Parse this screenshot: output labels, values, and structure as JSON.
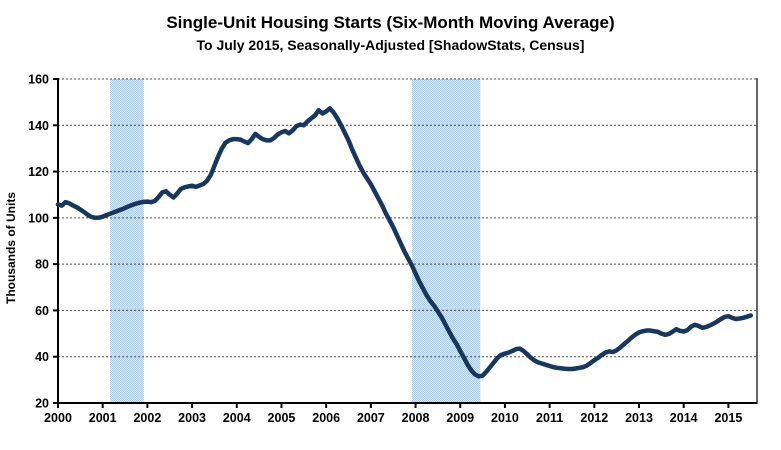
{
  "header": {
    "title": "Single-Unit Housing Starts (Six-Month Moving Average)",
    "subtitle": "To July 2015, Seasonally-Adjusted [ShadowStats, Census]"
  },
  "chart_data": {
    "type": "line",
    "title": "Single-Unit Housing Starts (Six-Month Moving Average)",
    "subtitle": "To July 2015, Seasonally-Adjusted [ShadowStats, Census]",
    "ylabel": "Thousands of Units",
    "xlabel": "",
    "grid": "horizontal-dotted",
    "legend": "none",
    "ylim": [
      20,
      160
    ],
    "xlim": [
      2000,
      2015.64
    ],
    "y_ticks": [
      20,
      40,
      60,
      80,
      100,
      120,
      140,
      160
    ],
    "x_ticks": [
      2000,
      2001,
      2002,
      2003,
      2004,
      2005,
      2006,
      2007,
      2008,
      2009,
      2010,
      2011,
      2012,
      2013,
      2014,
      2015
    ],
    "line_color": "#17375E",
    "line_width": 4.5,
    "band_color": "#adc9e8",
    "band_color_alt": "#dce8f6",
    "recession_bands": [
      {
        "from": 2001.17,
        "to": 2001.92
      },
      {
        "from": 2007.92,
        "to": 2009.45
      }
    ],
    "series": [
      {
        "name": "Single-unit housing starts, 6-month moving average (thousands of units)",
        "start_year": 2000,
        "start_month": 1,
        "frequency": "monthly",
        "values": [
          105.8,
          105.3,
          106.8,
          106.3,
          105.4,
          104.6,
          103.6,
          102.5,
          101.3,
          100.4,
          100.0,
          100.1,
          100.5,
          101.2,
          101.8,
          102.4,
          103.0,
          103.6,
          104.3,
          105.0,
          105.6,
          106.2,
          106.6,
          106.9,
          107.0,
          106.8,
          107.3,
          109.0,
          111.0,
          111.5,
          110.0,
          108.8,
          110.5,
          112.5,
          113.2,
          113.6,
          113.9,
          113.4,
          114.0,
          114.6,
          116.0,
          118.5,
          122.5,
          126.5,
          130.0,
          132.5,
          133.5,
          134.0,
          134.0,
          133.8,
          133.0,
          132.3,
          134.0,
          136.3,
          135.0,
          134.0,
          133.5,
          133.5,
          134.5,
          136.0,
          137.0,
          137.5,
          136.5,
          137.8,
          139.6,
          140.3,
          140.0,
          141.7,
          143.0,
          144.3,
          146.5,
          145.1,
          146.0,
          147.3,
          145.5,
          143.0,
          140.0,
          136.8,
          133.5,
          129.5,
          126.0,
          122.5,
          119.5,
          117.0,
          114.5,
          111.5,
          108.5,
          105.5,
          102.0,
          99.0,
          96.0,
          92.5,
          89.0,
          85.5,
          82.5,
          79.5,
          76.0,
          72.5,
          69.5,
          66.5,
          64.0,
          62.0,
          59.5,
          57.0,
          54.0,
          51.0,
          48.0,
          45.5,
          42.5,
          39.5,
          36.5,
          34.0,
          32.3,
          31.5,
          31.8,
          33.5,
          35.5,
          37.5,
          39.5,
          40.8,
          41.3,
          41.8,
          42.5,
          43.3,
          43.5,
          42.5,
          41.0,
          39.5,
          38.3,
          37.5,
          37.0,
          36.5,
          36.0,
          35.5,
          35.2,
          35.0,
          34.8,
          34.7,
          34.7,
          34.9,
          35.2,
          35.5,
          36.2,
          37.3,
          38.5,
          39.5,
          40.8,
          41.8,
          42.3,
          42.0,
          42.8,
          44.0,
          45.5,
          46.8,
          48.3,
          49.5,
          50.5,
          51.0,
          51.3,
          51.3,
          51.0,
          50.8,
          50.0,
          49.5,
          49.8,
          50.8,
          51.9,
          51.2,
          50.9,
          51.5,
          53.0,
          53.8,
          53.3,
          52.5,
          52.8,
          53.5,
          54.3,
          55.2,
          56.3,
          57.2,
          57.5,
          56.8,
          56.3,
          56.5,
          56.8,
          57.3,
          57.8
        ]
      }
    ]
  }
}
